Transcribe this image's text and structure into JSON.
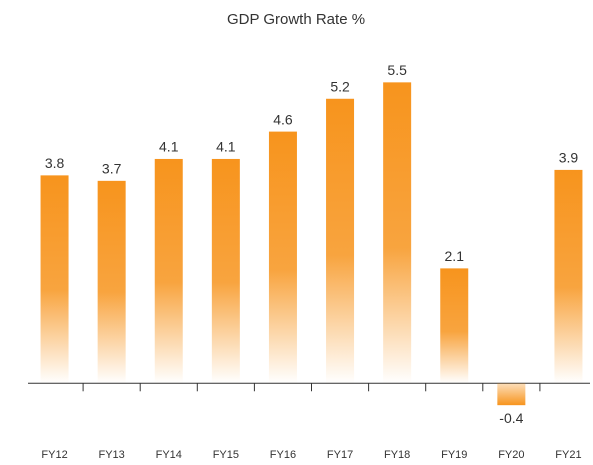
{
  "chart_data": {
    "type": "bar",
    "title": "GDP Growth Rate %",
    "categories": [
      "FY12",
      "FY13",
      "FY14",
      "FY15",
      "FY16",
      "FY17",
      "FY18",
      "FY19",
      "FY20",
      "FY21"
    ],
    "values": [
      3.8,
      3.7,
      4.1,
      4.1,
      4.6,
      5.2,
      5.5,
      2.1,
      -0.4,
      3.9
    ],
    "color": "#f7941d",
    "ylim": [
      -1,
      6
    ]
  }
}
